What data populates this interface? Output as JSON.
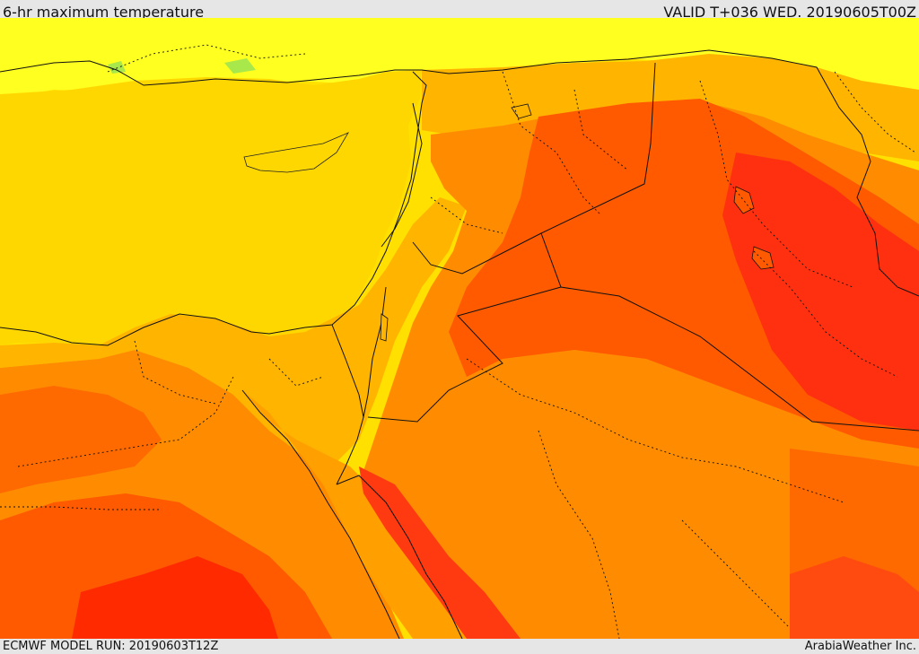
{
  "header": {
    "title": "6-hr maximum temperature",
    "valid": "VALID T+036 WED. 20190605T00Z"
  },
  "footer": {
    "model_run": "ECMWF MODEL RUN: 20190603T12Z",
    "credit": "ArabiaWeather Inc."
  },
  "palette": {
    "light_yellow": "#ffff2a",
    "yellow": "#ffd700",
    "gold": "#ffb400",
    "orange": "#ff8c00",
    "dark_orange": "#ff5a00",
    "red_orange": "#ff3a10",
    "red": "#ff2000",
    "land_green": "#a8e84a"
  }
}
